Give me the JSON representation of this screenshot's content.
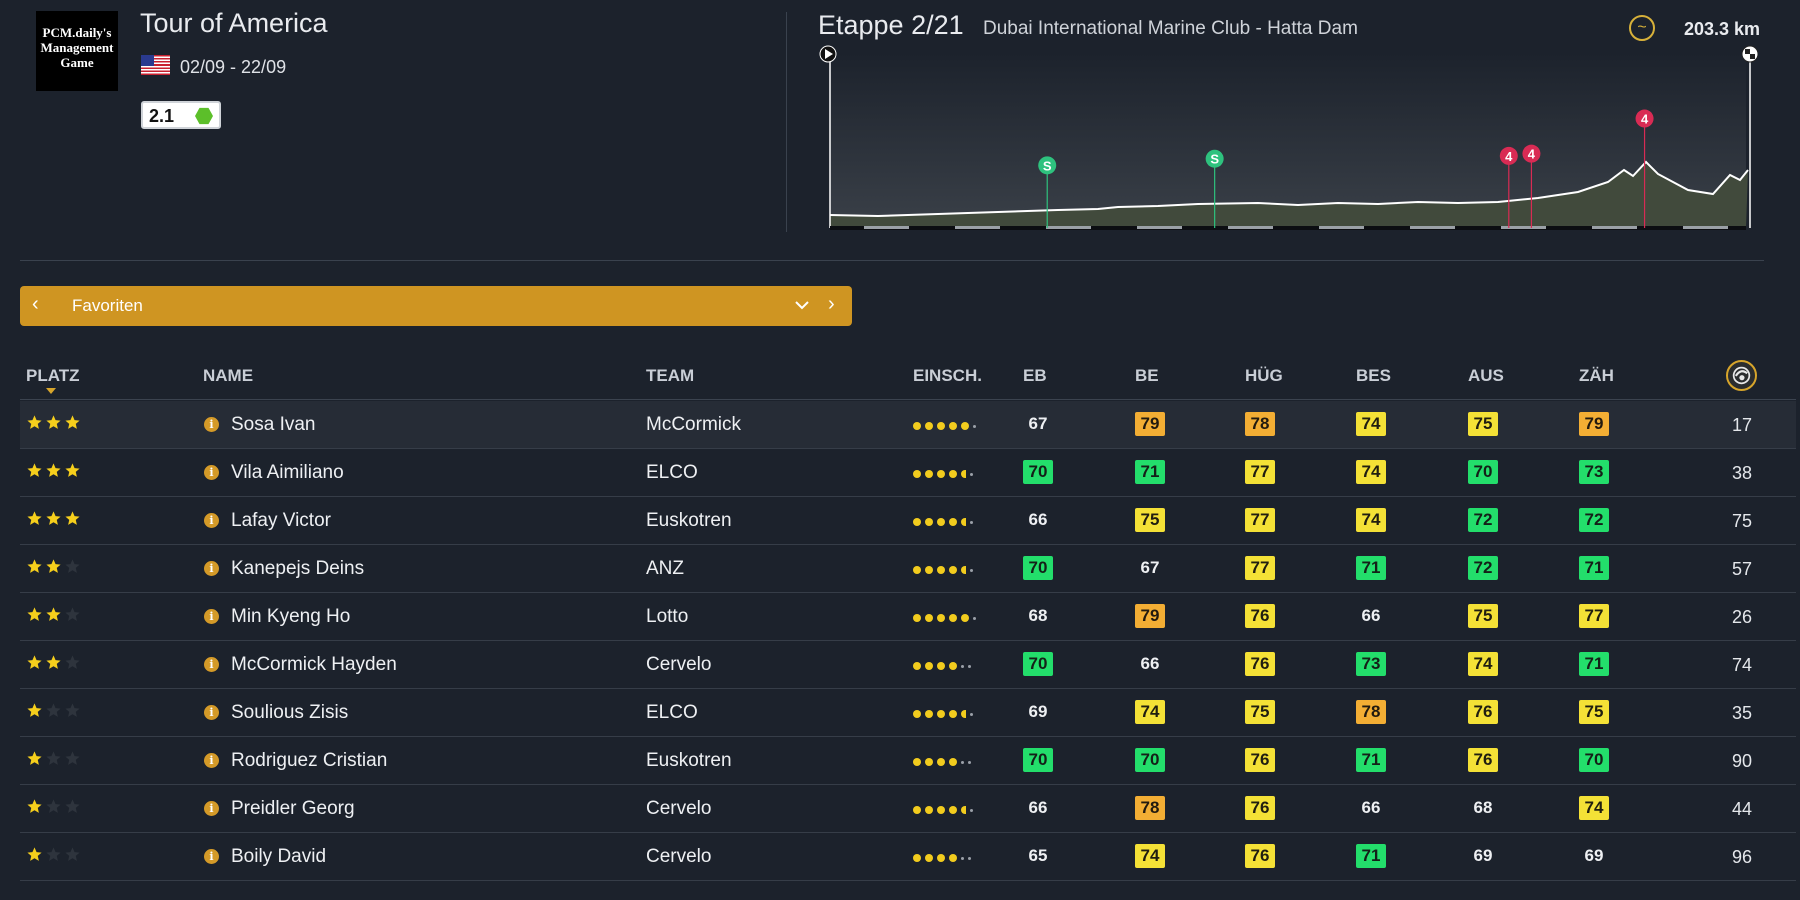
{
  "header": {
    "logo_lines": [
      "PCM.daily's",
      "Management",
      "Game"
    ],
    "race_title": "Tour of America",
    "dates": "02/09 - 22/09",
    "category": "2.1",
    "flag_icon": "us-flag-icon"
  },
  "stage": {
    "title": "Etappe 2/21",
    "route": "Dubai International Marine Club - Hatta Dam",
    "distance": "203.3 km",
    "markers": [
      {
        "type": "sprint",
        "label": "S",
        "km": 48
      },
      {
        "type": "sprint",
        "label": "S",
        "km": 85
      },
      {
        "type": "climb",
        "label": "4",
        "km": 150
      },
      {
        "type": "climb",
        "label": "4",
        "km": 155
      },
      {
        "type": "climb",
        "label": "4",
        "km": 180
      }
    ]
  },
  "favorites": {
    "label": "Favoriten"
  },
  "table": {
    "headers": [
      "PLATZ",
      "NAME",
      "TEAM",
      "EINSCH.",
      "EB",
      "BE",
      "HÜG",
      "BES",
      "AUS",
      "ZÄH"
    ],
    "rows": [
      {
        "stars": 3,
        "name": "Sosa Ivan",
        "team": "McCormick",
        "form": 5,
        "form_half": false,
        "stats": [
          67,
          79,
          78,
          74,
          75,
          79
        ],
        "colors": [
          "n",
          "o",
          "o",
          "y",
          "y",
          "o"
        ],
        "num": "17"
      },
      {
        "stars": 3,
        "name": "Vila Aimiliano",
        "team": "ELCO",
        "form": 4,
        "form_half": true,
        "stats": [
          70,
          71,
          77,
          74,
          70,
          73
        ],
        "colors": [
          "g",
          "g",
          "y",
          "y",
          "g",
          "g"
        ],
        "num": "38"
      },
      {
        "stars": 3,
        "name": "Lafay Victor",
        "team": "Euskotren",
        "form": 4,
        "form_half": true,
        "stats": [
          66,
          75,
          77,
          74,
          72,
          72
        ],
        "colors": [
          "n",
          "y",
          "y",
          "y",
          "g",
          "g"
        ],
        "num": "75"
      },
      {
        "stars": 2,
        "name": "Kanepejs Deins",
        "team": "ANZ",
        "form": 4,
        "form_half": true,
        "stats": [
          70,
          67,
          77,
          71,
          72,
          71
        ],
        "colors": [
          "g",
          "n",
          "y",
          "g",
          "g",
          "g"
        ],
        "num": "57"
      },
      {
        "stars": 2,
        "name": "Min Kyeng Ho",
        "team": "Lotto",
        "form": 5,
        "form_half": false,
        "stats": [
          68,
          79,
          76,
          66,
          75,
          77
        ],
        "colors": [
          "n",
          "o",
          "y",
          "n",
          "y",
          "y"
        ],
        "num": "26"
      },
      {
        "stars": 2,
        "name": "McCormick Hayden",
        "team": "Cervelo",
        "form": 4,
        "form_half": false,
        "stats": [
          70,
          66,
          76,
          73,
          74,
          71
        ],
        "colors": [
          "g",
          "n",
          "y",
          "g",
          "y",
          "g"
        ],
        "num": "74"
      },
      {
        "stars": 1,
        "name": "Soulious Zisis",
        "team": "ELCO",
        "form": 4,
        "form_half": true,
        "stats": [
          69,
          74,
          75,
          78,
          76,
          75
        ],
        "colors": [
          "n",
          "y",
          "y",
          "o",
          "y",
          "y"
        ],
        "num": "35"
      },
      {
        "stars": 1,
        "name": "Rodriguez Cristian",
        "team": "Euskotren",
        "form": 4,
        "form_half": false,
        "stats": [
          70,
          70,
          76,
          71,
          76,
          70
        ],
        "colors": [
          "g",
          "g",
          "y",
          "g",
          "y",
          "g"
        ],
        "num": "90"
      },
      {
        "stars": 1,
        "name": "Preidler Georg",
        "team": "Cervelo",
        "form": 4,
        "form_half": true,
        "stats": [
          66,
          78,
          76,
          66,
          68,
          74
        ],
        "colors": [
          "n",
          "o",
          "y",
          "n",
          "n",
          "y"
        ],
        "num": "44"
      },
      {
        "stars": 1,
        "name": "Boily David",
        "team": "Cervelo",
        "form": 4,
        "form_half": false,
        "stats": [
          65,
          74,
          76,
          71,
          69,
          69
        ],
        "colors": [
          "n",
          "y",
          "y",
          "g",
          "n",
          "n"
        ],
        "num": "96"
      }
    ]
  },
  "colors": {
    "background": "#1c222c",
    "accent": "#cf9522",
    "stat_green": "#23de6b",
    "stat_yellow": "#f4e136",
    "stat_orange": "#f3ae34",
    "sprint": "#2ec27e",
    "climb": "#d92b54"
  },
  "icons": {
    "profile_toggle": "wave-icon",
    "rider_column": "rider-helmet-icon",
    "info": "info-icon"
  }
}
